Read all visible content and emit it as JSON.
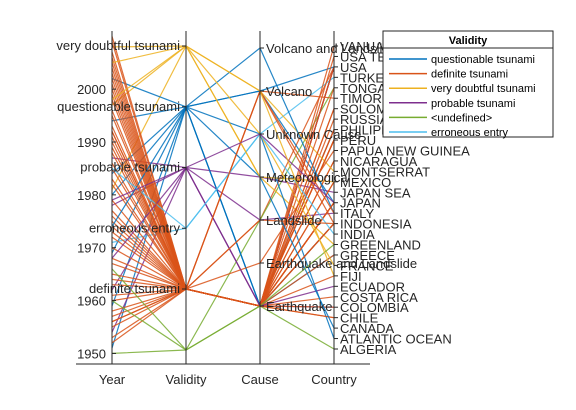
{
  "chart_data": {
    "type": "parallel-coordinates",
    "axes": [
      "Year",
      "Validity",
      "Cause",
      "Country"
    ],
    "year_ticks": [
      1950,
      1960,
      1970,
      1980,
      1990,
      2000
    ],
    "ylim_year": [
      1948,
      2011
    ],
    "validity_categories": [
      "definite tsunami",
      "erroneous entry",
      "probable tsunami",
      "questionable tsunami",
      "very doubtful tsunami"
    ],
    "cause_categories": [
      "Earthquake",
      "Earthquake and Landslide",
      "Landslide",
      "Meteorological",
      "Unknown Cause",
      "Volcano",
      "Volcano and Landslide"
    ],
    "country_categories": [
      "ALGERIA",
      "ATLANTIC OCEAN",
      "CANADA",
      "CHILE",
      "COLOMBIA",
      "COSTA RICA",
      "ECUADOR",
      "FIJI",
      "FRANCE",
      "GREECE",
      "GREENLAND",
      "INDIA",
      "INDONESIA",
      "ITALY",
      "JAPAN",
      "JAPAN SEA",
      "MEXICO",
      "MONTSERRAT",
      "NICARAGUA",
      "PAPUA NEW GUINEA",
      "PERU",
      "PHILIPPINES",
      "RUSSIA",
      "SOLOMON ISLANDS",
      "TIMOR",
      "TONGA",
      "TURKEY",
      "USA",
      "USA TERRITORY",
      "VANUATU"
    ],
    "legend": {
      "title": "Validity",
      "entries": [
        "questionable tsunami",
        "definite tsunami",
        "very doubtful tsunami",
        "probable tsunami",
        "<undefined>",
        "erroneous entry"
      ]
    },
    "group_colors": {
      "questionable tsunami": "#0072BD",
      "definite tsunami": "#D95319",
      "very doubtful tsunami": "#EDB120",
      "probable tsunami": "#7E2F8E",
      "<undefined>": "#77AC30",
      "erroneous entry": "#4DBEEE"
    },
    "records": [
      {
        "year": 1950,
        "validity": "<undefined>",
        "cause": "Earthquake",
        "country": "ALGERIA"
      },
      {
        "year": 1951,
        "validity": "questionable tsunami",
        "cause": "Earthquake",
        "country": "GREECE"
      },
      {
        "year": 1952,
        "validity": "definite tsunami",
        "cause": "Earthquake",
        "country": "JAPAN"
      },
      {
        "year": 1953,
        "validity": "definite tsunami",
        "cause": "Earthquake",
        "country": "FIJI"
      },
      {
        "year": 1954,
        "validity": "probable tsunami",
        "cause": "Landslide",
        "country": "ITALY"
      },
      {
        "year": 1955,
        "validity": "definite tsunami",
        "cause": "Earthquake",
        "country": "PHILIPPINES"
      },
      {
        "year": 1956,
        "validity": "definite tsunami",
        "cause": "Earthquake",
        "country": "GREECE"
      },
      {
        "year": 1957,
        "validity": "definite tsunami",
        "cause": "Earthquake",
        "country": "USA"
      },
      {
        "year": 1958,
        "validity": "definite tsunami",
        "cause": "Landslide",
        "country": "USA"
      },
      {
        "year": 1959,
        "validity": "questionable tsunami",
        "cause": "Volcano",
        "country": "JAPAN"
      },
      {
        "year": 1960,
        "validity": "definite tsunami",
        "cause": "Earthquake",
        "country": "CHILE"
      },
      {
        "year": 1961,
        "validity": "definite tsunami",
        "cause": "Earthquake",
        "country": "JAPAN"
      },
      {
        "year": 1962,
        "validity": "probable tsunami",
        "cause": "Earthquake",
        "country": "COLOMBIA"
      },
      {
        "year": 1963,
        "validity": "definite tsunami",
        "cause": "Earthquake",
        "country": "RUSSIA"
      },
      {
        "year": 1964,
        "validity": "definite tsunami",
        "cause": "Earthquake",
        "country": "USA"
      },
      {
        "year": 1965,
        "validity": "definite tsunami",
        "cause": "Earthquake",
        "country": "INDONESIA"
      },
      {
        "year": 1966,
        "validity": "<undefined>",
        "cause": "Landslide",
        "country": "TONGA"
      },
      {
        "year": 1967,
        "validity": "definite tsunami",
        "cause": "Earthquake",
        "country": "PERU"
      },
      {
        "year": 1968,
        "validity": "definite tsunami",
        "cause": "Earthquake",
        "country": "JAPAN"
      },
      {
        "year": 1969,
        "validity": "questionable tsunami",
        "cause": "Earthquake",
        "country": "PHILIPPINES"
      },
      {
        "year": 1970,
        "validity": "definite tsunami",
        "cause": "Earthquake",
        "country": "PERU"
      },
      {
        "year": 1971,
        "validity": "erroneous entry",
        "cause": "Unknown Cause",
        "country": "TURKEY"
      },
      {
        "year": 1972,
        "validity": "definite tsunami",
        "cause": "Earthquake",
        "country": "NICARAGUA"
      },
      {
        "year": 1973,
        "validity": "definite tsunami",
        "cause": "Earthquake",
        "country": "JAPAN"
      },
      {
        "year": 1974,
        "validity": "definite tsunami",
        "cause": "Earthquake",
        "country": "PERU"
      },
      {
        "year": 1975,
        "validity": "definite tsunami",
        "cause": "Earthquake",
        "country": "USA"
      },
      {
        "year": 1976,
        "validity": "definite tsunami",
        "cause": "Earthquake",
        "country": "PHILIPPINES"
      },
      {
        "year": 1977,
        "validity": "definite tsunami",
        "cause": "Earthquake",
        "country": "INDONESIA"
      },
      {
        "year": 1978,
        "validity": "probable tsunami",
        "cause": "Meteorological",
        "country": "JAPAN SEA"
      },
      {
        "year": 1979,
        "validity": "definite tsunami",
        "cause": "Earthquake",
        "country": "COLOMBIA"
      },
      {
        "year": 1980,
        "validity": "questionable tsunami",
        "cause": "Volcano",
        "country": "USA"
      },
      {
        "year": 1981,
        "validity": "very doubtful tsunami",
        "cause": "Meteorological",
        "country": "GREENLAND"
      },
      {
        "year": 1982,
        "validity": "definite tsunami",
        "cause": "Earthquake",
        "country": "INDONESIA"
      },
      {
        "year": 1983,
        "validity": "definite tsunami",
        "cause": "Earthquake",
        "country": "JAPAN"
      },
      {
        "year": 1984,
        "validity": "questionable tsunami",
        "cause": "Unknown Cause",
        "country": "ATLANTIC OCEAN"
      },
      {
        "year": 1985,
        "validity": "definite tsunami",
        "cause": "Earthquake",
        "country": "MEXICO"
      },
      {
        "year": 1986,
        "validity": "definite tsunami",
        "cause": "Earthquake",
        "country": "USA"
      },
      {
        "year": 1987,
        "validity": "probable tsunami",
        "cause": "Earthquake",
        "country": "USA"
      },
      {
        "year": 1988,
        "validity": "definite tsunami",
        "cause": "Volcano",
        "country": "INDONESIA"
      },
      {
        "year": 1989,
        "validity": "definite tsunami",
        "cause": "Earthquake",
        "country": "USA"
      },
      {
        "year": 1990,
        "validity": "definite tsunami",
        "cause": "Earthquake",
        "country": "PHILIPPINES"
      },
      {
        "year": 1991,
        "validity": "definite tsunami",
        "cause": "Earthquake",
        "country": "COSTA RICA"
      },
      {
        "year": 1992,
        "validity": "definite tsunami",
        "cause": "Earthquake",
        "country": "NICARAGUA"
      },
      {
        "year": 1993,
        "validity": "definite tsunami",
        "cause": "Earthquake",
        "country": "JAPAN"
      },
      {
        "year": 1994,
        "validity": "questionable tsunami",
        "cause": "Earthquake",
        "country": "INDONESIA"
      },
      {
        "year": 1995,
        "validity": "definite tsunami",
        "cause": "Earthquake",
        "country": "MEXICO"
      },
      {
        "year": 1996,
        "validity": "definite tsunami",
        "cause": "Earthquake",
        "country": "PERU"
      },
      {
        "year": 1997,
        "validity": "very doubtful tsunami",
        "cause": "Volcano",
        "country": "MONTSERRAT"
      },
      {
        "year": 1998,
        "validity": "definite tsunami",
        "cause": "Earthquake and Landslide",
        "country": "PAPUA NEW GUINEA"
      },
      {
        "year": 1999,
        "validity": "definite tsunami",
        "cause": "Earthquake",
        "country": "VANUATU"
      },
      {
        "year": 2000,
        "validity": "definite tsunami",
        "cause": "Earthquake",
        "country": "SOLOMON ISLANDS"
      },
      {
        "year": 2001,
        "validity": "definite tsunami",
        "cause": "Earthquake",
        "country": "PERU"
      },
      {
        "year": 2002,
        "validity": "questionable tsunami",
        "cause": "Volcano and Landslide",
        "country": "ITALY"
      },
      {
        "year": 2003,
        "validity": "definite tsunami",
        "cause": "Earthquake",
        "country": "JAPAN"
      },
      {
        "year": 2004,
        "validity": "definite tsunami",
        "cause": "Earthquake",
        "country": "INDONESIA"
      },
      {
        "year": 2005,
        "validity": "definite tsunami",
        "cause": "Earthquake",
        "country": "INDONESIA"
      },
      {
        "year": 2006,
        "validity": "definite tsunami",
        "cause": "Earthquake",
        "country": "TONGA"
      },
      {
        "year": 2007,
        "validity": "definite tsunami",
        "cause": "Earthquake",
        "country": "SOLOMON ISLANDS"
      },
      {
        "year": 2008,
        "validity": "very doubtful tsunami",
        "cause": "Unknown Cause",
        "country": "FRANCE"
      },
      {
        "year": 2009,
        "validity": "definite tsunami",
        "cause": "Earthquake",
        "country": "USA TERRITORY"
      },
      {
        "year": 2010,
        "validity": "definite tsunami",
        "cause": "Earthquake",
        "country": "CHILE"
      },
      {
        "year": 1956,
        "validity": "definite tsunami",
        "cause": "Volcano",
        "country": "TIMOR"
      },
      {
        "year": 1968,
        "validity": "probable tsunami",
        "cause": "Earthquake",
        "country": "ECUADOR"
      },
      {
        "year": 1974,
        "validity": "questionable tsunami",
        "cause": "Meteorological",
        "country": "CANADA"
      },
      {
        "year": 1985,
        "validity": "erroneous entry",
        "cause": "Unknown Cause",
        "country": "INDIA"
      },
      {
        "year": 1992,
        "validity": "definite tsunami",
        "cause": "Landslide",
        "country": "INDONESIA"
      },
      {
        "year": 2002,
        "validity": "definite tsunami",
        "cause": "Volcano",
        "country": "ITALY"
      },
      {
        "year": 2005,
        "validity": "very doubtful tsunami",
        "cause": "Meteorological",
        "country": "MEXICO"
      },
      {
        "year": 1960,
        "validity": "<undefined>",
        "cause": "Earthquake",
        "country": "GREENLAND"
      },
      {
        "year": 1979,
        "validity": "probable tsunami",
        "cause": "Unknown Cause",
        "country": "JAPAN"
      },
      {
        "year": 1998,
        "validity": "very doubtful tsunami",
        "cause": "Volcano",
        "country": "FIJI"
      }
    ]
  }
}
